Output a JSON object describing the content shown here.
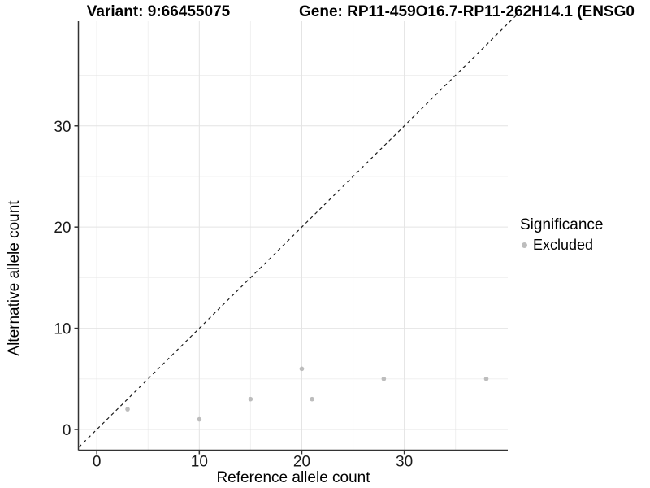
{
  "chart_data": {
    "type": "scatter",
    "titles": {
      "left": "Variant: 9:66455075",
      "right": "Gene: RP11-459O16.7-RP11-262H14.1 (ENSG0"
    },
    "xlabel": "Reference allele count",
    "ylabel": "Alternative allele count",
    "x_axis": {
      "major_ticks": [
        0,
        10,
        20,
        30
      ],
      "minor_ticks": [
        5,
        15,
        25,
        35
      ],
      "lim": [
        -1.8,
        40.1
      ]
    },
    "y_axis": {
      "major_ticks": [
        0,
        10,
        20,
        30
      ],
      "minor_ticks": [
        5,
        15,
        25,
        35
      ],
      "lim": [
        -2.05,
        40.35
      ]
    },
    "series": [
      {
        "name": "Excluded",
        "color": "#bdbdbd",
        "points": [
          [
            3,
            2
          ],
          [
            10,
            1
          ],
          [
            15,
            3
          ],
          [
            20,
            6
          ],
          [
            21,
            3
          ],
          [
            28,
            5
          ],
          [
            38,
            5
          ]
        ]
      }
    ],
    "identity_line": {
      "style": "dashed",
      "slope": 1,
      "intercept": 0,
      "from": -1.75,
      "to": 41,
      "color": "#1a1a1a"
    },
    "legend": {
      "title": "Significance",
      "position": "right",
      "items": [
        {
          "label": "Excluded",
          "color": "#bdbdbd"
        }
      ]
    },
    "grid": "on",
    "colors": {
      "grid_major": "#e4e4e4",
      "grid_minor": "#f0f0f0",
      "axis_line": "#333333",
      "tick_label": "#1a1a1a",
      "point": "#bdbdbd"
    }
  }
}
